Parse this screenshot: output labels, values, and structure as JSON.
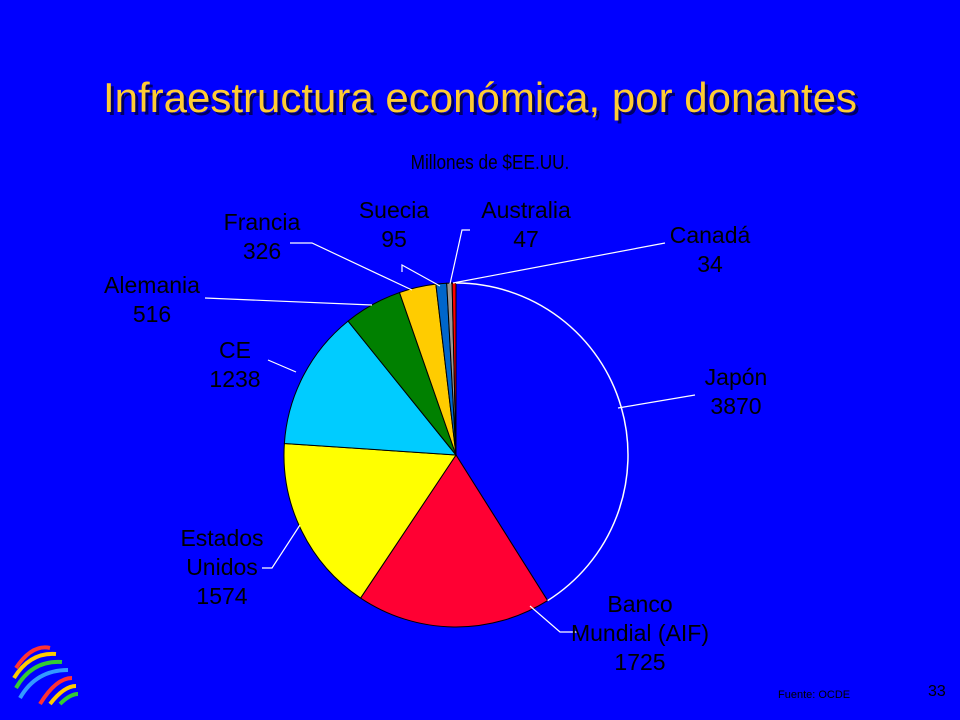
{
  "slide": {
    "title": "Infraestructura económica, por donantes",
    "source": "Fuente: OCDE",
    "slide_number": "33",
    "logo_icon": "wto-logo-icon"
  },
  "chart_data": {
    "type": "pie",
    "subtitle": "Millones de $EE.UU.",
    "slices": [
      {
        "name": "Japón",
        "value": 3870,
        "color": "#0000ff",
        "label_lines": [
          "Japón",
          "3870"
        ]
      },
      {
        "name": "Banco Mundial (AIF)",
        "value": 1725,
        "color": "#ff0033",
        "label_lines": [
          "Banco",
          "Mundial (AIF)",
          "1725"
        ]
      },
      {
        "name": "Estados Unidos",
        "value": 1574,
        "color": "#ffff00",
        "label_lines": [
          "Estados",
          "Unidos",
          "1574"
        ]
      },
      {
        "name": "CE",
        "value": 1238,
        "color": "#00ccff",
        "label_lines": [
          "CE",
          "1238"
        ]
      },
      {
        "name": "Alemania",
        "value": 516,
        "color": "#008000",
        "label_lines": [
          "Alemania",
          "516"
        ]
      },
      {
        "name": "Francia",
        "value": 326,
        "color": "#ffcc00",
        "label_lines": [
          "Francia",
          "326"
        ]
      },
      {
        "name": "Suecia",
        "value": 95,
        "color": "#0066cc",
        "label_lines": [
          "Suecia",
          "95"
        ]
      },
      {
        "name": "Australia",
        "value": 47,
        "color": "#999999",
        "label_lines": [
          "Australia",
          "47"
        ]
      },
      {
        "name": "Canadá",
        "value": 34,
        "color": "#ff0000",
        "label_lines": [
          "Canadá",
          "34"
        ]
      }
    ]
  }
}
